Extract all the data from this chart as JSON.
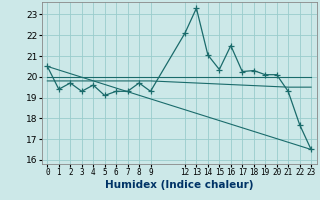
{
  "xlabel": "Humidex (Indice chaleur)",
  "bg_color": "#cce8e8",
  "grid_color": "#99cccc",
  "line_color": "#1a6b6b",
  "xlim": [
    -0.5,
    23.5
  ],
  "ylim": [
    15.8,
    23.6
  ],
  "yticks": [
    16,
    17,
    18,
    19,
    20,
    21,
    22,
    23
  ],
  "xticks": [
    0,
    1,
    2,
    3,
    4,
    5,
    6,
    7,
    8,
    9,
    12,
    13,
    14,
    15,
    16,
    17,
    18,
    19,
    20,
    21,
    22,
    23
  ],
  "series": [
    {
      "x": [
        0,
        1,
        2,
        3,
        4,
        5,
        6,
        7,
        8,
        9,
        12,
        13,
        14,
        15,
        16,
        17,
        18,
        19,
        20,
        21,
        22,
        23
      ],
      "y": [
        20.5,
        19.4,
        19.7,
        19.3,
        19.6,
        19.1,
        19.3,
        19.3,
        19.7,
        19.3,
        22.1,
        23.3,
        21.05,
        20.35,
        21.5,
        20.25,
        20.3,
        20.1,
        20.1,
        19.3,
        17.7,
        16.5
      ],
      "marker": true
    },
    {
      "x": [
        0,
        9,
        23
      ],
      "y": [
        20.0,
        20.0,
        20.0
      ],
      "marker": false
    },
    {
      "x": [
        0,
        9,
        21,
        23
      ],
      "y": [
        19.8,
        19.8,
        19.5,
        19.5
      ],
      "marker": false
    },
    {
      "x": [
        0,
        23
      ],
      "y": [
        20.5,
        16.5
      ],
      "marker": false
    }
  ]
}
